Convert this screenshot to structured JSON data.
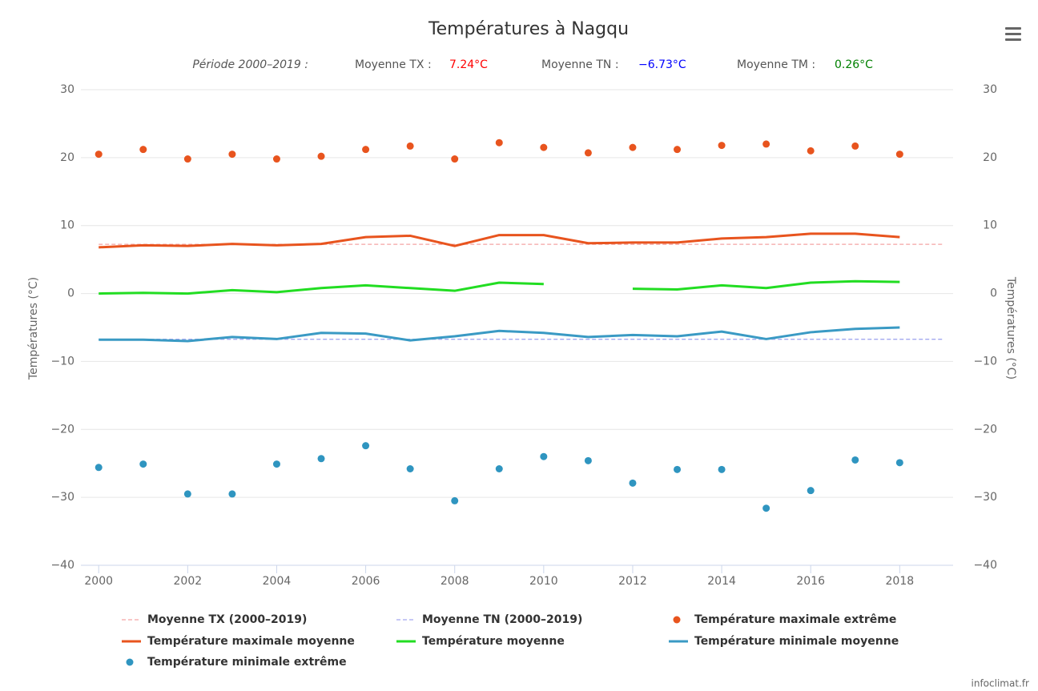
{
  "chart_data": {
    "type": "line",
    "title": "Températures à Nagqu",
    "subtitle": {
      "period": "Période 2000–2019 :",
      "items": [
        {
          "label": "Moyenne TX :",
          "value": "7.24°C",
          "color": "#ff0000"
        },
        {
          "label": "Moyenne TN :",
          "value": "−6.73°C",
          "color": "#0000ff"
        },
        {
          "label": "Moyenne TM :",
          "value": "0.26°C",
          "color": "#008000"
        }
      ]
    },
    "y_label": "Températures (°C)",
    "y2_label": "Températures (°C)",
    "credits": "infoclimat.fr",
    "x": [
      2000,
      2001,
      2002,
      2003,
      2004,
      2005,
      2006,
      2007,
      2008,
      2009,
      2010,
      2011,
      2012,
      2013,
      2014,
      2015,
      2016,
      2017,
      2018
    ],
    "xlim": [
      1999.6,
      2019.2
    ],
    "xticks": [
      2000,
      2002,
      2004,
      2006,
      2008,
      2010,
      2012,
      2014,
      2016,
      2018
    ],
    "ylim": [
      -40,
      30
    ],
    "yticks": [
      {
        "value": -40,
        "label": "−40"
      },
      {
        "value": -30,
        "label": "−30"
      },
      {
        "value": -20,
        "label": "−20"
      },
      {
        "value": -10,
        "label": "−10"
      },
      0,
      10,
      20,
      30
    ],
    "y2lim": [
      -40,
      30
    ],
    "y2ticks": [
      {
        "value": -40,
        "label": "−40"
      },
      {
        "value": -30,
        "label": "−30"
      },
      {
        "value": -20,
        "label": "−20"
      },
      {
        "value": -10,
        "label": "−10"
      },
      0,
      10,
      20,
      30
    ],
    "grid": true,
    "series": [
      {
        "name": "Moyenne TX (2000–2019)",
        "type": "line",
        "dash": true,
        "color": "#f4a3a3",
        "x": [
          2000,
          2019
        ],
        "values": [
          7.24,
          7.24
        ]
      },
      {
        "name": "Moyenne TN (2000–2019)",
        "type": "line",
        "dash": true,
        "color": "#a3a8f0",
        "x": [
          2000,
          2019
        ],
        "values": [
          -6.73,
          -6.73
        ]
      },
      {
        "name": "Température maximale extrême",
        "type": "scatter",
        "color": "#e8541e",
        "values": [
          20.5,
          21.2,
          19.8,
          20.5,
          19.8,
          20.2,
          21.2,
          21.7,
          19.8,
          22.2,
          21.5,
          20.7,
          21.5,
          21.2,
          21.8,
          22.0,
          21.0,
          21.7,
          20.5
        ]
      },
      {
        "name": "Température maximale moyenne",
        "type": "line",
        "color": "#e8541e",
        "values": [
          6.8,
          7.1,
          7.0,
          7.3,
          7.1,
          7.3,
          8.3,
          8.5,
          7.0,
          8.6,
          8.6,
          7.4,
          7.5,
          7.5,
          8.1,
          8.3,
          8.8,
          8.8,
          8.3
        ]
      },
      {
        "name": "Température moyenne",
        "type": "line",
        "color": "#22dd22",
        "values": [
          0.0,
          0.1,
          0.0,
          0.5,
          0.2,
          0.8,
          1.2,
          0.8,
          0.4,
          1.6,
          1.4,
          null,
          0.7,
          0.6,
          1.2,
          0.8,
          1.6,
          1.8,
          1.7
        ]
      },
      {
        "name": "Température minimale moyenne",
        "type": "line",
        "color": "#3a9ac4",
        "values": [
          -6.8,
          -6.8,
          -7.0,
          -6.4,
          -6.7,
          -5.8,
          -5.9,
          -6.9,
          -6.3,
          -5.5,
          -5.8,
          -6.4,
          -6.1,
          -6.3,
          -5.6,
          -6.7,
          -5.7,
          -5.2,
          -5.0
        ]
      },
      {
        "name": "Température minimale extrême",
        "type": "scatter",
        "color": "#2f95c0",
        "values": [
          -25.6,
          -25.1,
          -29.5,
          -29.5,
          -25.1,
          -24.3,
          -22.4,
          -25.8,
          -30.5,
          -25.8,
          -24.0,
          -24.6,
          -27.9,
          -25.9,
          -25.9,
          -31.6,
          -29.0,
          -24.5,
          -24.9
        ]
      }
    ]
  }
}
